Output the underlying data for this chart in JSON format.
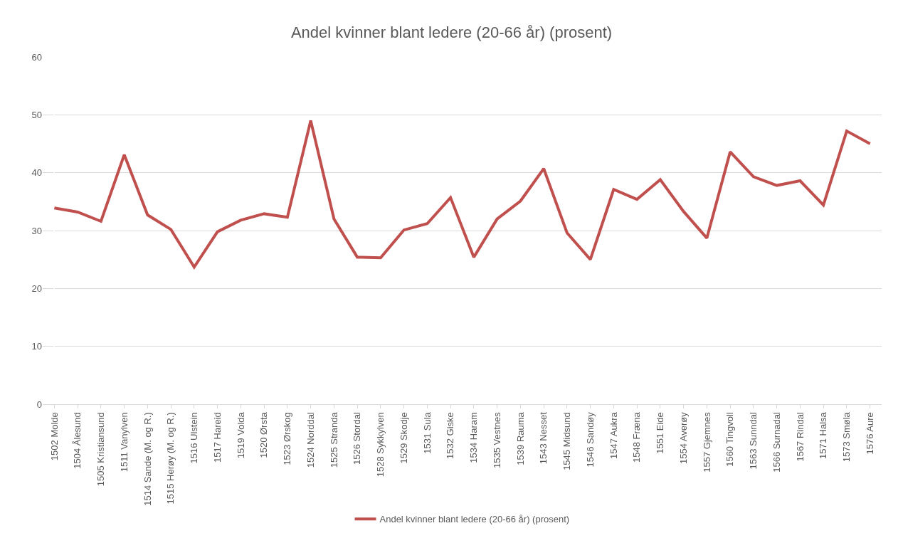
{
  "chart_data": {
    "type": "line",
    "title": "Andel kvinner blant ledere (20-66 år) (prosent)",
    "categories": [
      "1502 Molde",
      "1504 Ålesund",
      "1505 Kristiansund",
      "1511 Vanylven",
      "1514 Sande (M. og R.)",
      "1515 Herøy (M. og R.)",
      "1516 Ulstein",
      "1517 Hareid",
      "1519 Volda",
      "1520 Ørsta",
      "1523 Ørskog",
      "1524 Norddal",
      "1525 Stranda",
      "1526 Stordal",
      "1528 Sykkylven",
      "1529 Skodje",
      "1531 Sula",
      "1532 Giske",
      "1534 Haram",
      "1535 Vestnes",
      "1539 Rauma",
      "1543 Nesset",
      "1545 Midsund",
      "1546 Sandøy",
      "1547 Aukra",
      "1548 Fræna",
      "1551 Eide",
      "1554 Averøy",
      "1557 Gjemnes",
      "1560 Tingvoll",
      "1563 Sunndal",
      "1566 Surnadal",
      "1567 Rindal",
      "1571 Halsa",
      "1573 Smøla",
      "1576 Aure"
    ],
    "series": [
      {
        "name": "Andel kvinner blant ledere (20-66 år) (prosent)",
        "color": "#c0504d",
        "values": [
          33.9,
          33.2,
          31.6,
          43.1,
          32.7,
          30.2,
          23.7,
          29.8,
          31.8,
          32.9,
          32.3,
          49.0,
          32.0,
          25.4,
          25.3,
          30.1,
          31.2,
          35.7,
          25.4,
          32.0,
          35.1,
          40.7,
          29.6,
          25.0,
          37.1,
          35.4,
          38.8,
          33.3,
          28.7,
          43.6,
          39.3,
          37.8,
          38.6,
          34.4,
          47.2,
          45.0
        ]
      }
    ],
    "ylim": [
      0,
      60
    ],
    "yticks": [
      0,
      10,
      20,
      30,
      40,
      50,
      60
    ],
    "grid": "y",
    "legend": "bottom",
    "marker": "none",
    "line_style": "solid"
  }
}
